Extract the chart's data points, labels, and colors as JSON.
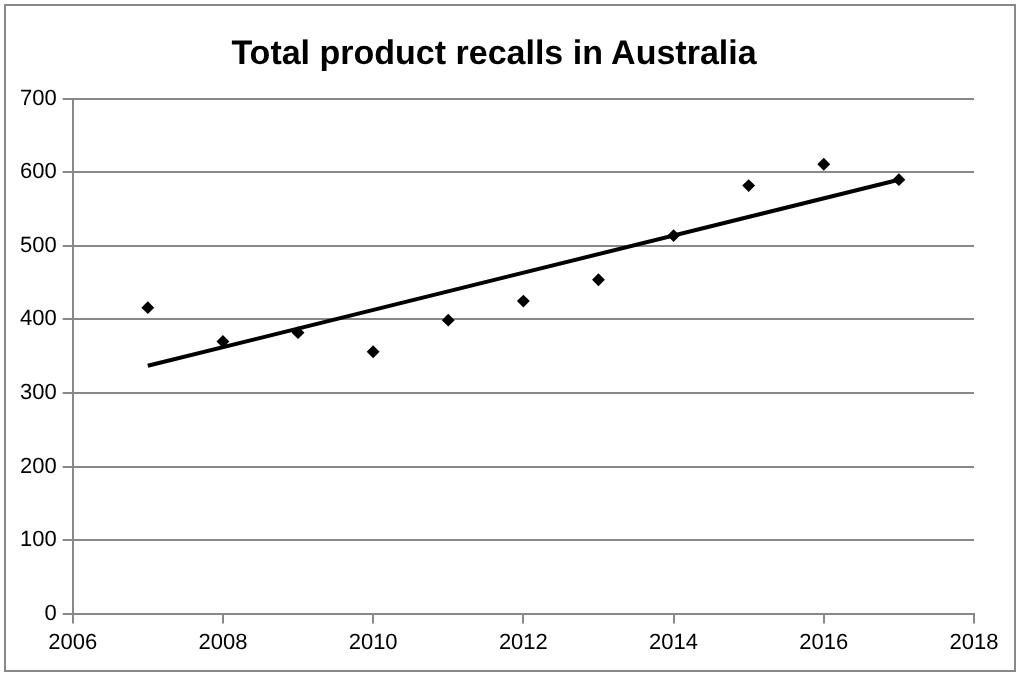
{
  "chart_data": {
    "type": "scatter",
    "title": "Total product recalls in Australia",
    "x": [
      2007,
      2008,
      2009,
      2010,
      2011,
      2012,
      2013,
      2014,
      2015,
      2016,
      2017
    ],
    "series": [
      {
        "color": "#000000",
        "marker": "diamond",
        "values": [
          416,
          370,
          382,
          356,
          399,
          425,
          454,
          514,
          582,
          611,
          590
        ]
      },
      {
        "type": "line",
        "color": "#000000",
        "marker": "none",
        "x": [
          2007,
          2017
        ],
        "values": [
          337,
          590
        ]
      }
    ],
    "xlim": [
      2006,
      2018
    ],
    "xticks": [
      2006,
      2008,
      2010,
      2012,
      2014,
      2016,
      2018
    ],
    "ylim": [
      0,
      700
    ],
    "yticks": [
      0,
      100,
      200,
      300,
      400,
      500,
      600,
      700
    ],
    "grid": "y",
    "legend": false
  }
}
